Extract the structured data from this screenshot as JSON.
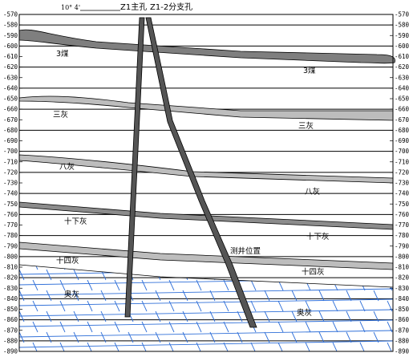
{
  "holes": {
    "main_label": "Z1主孔",
    "branch_label": "Z1-2分支孔",
    "angle_label": "10° 4'",
    "logging_label": "测井位置",
    "logging_color": "#e000d0"
  },
  "axis": {
    "min": -890,
    "max": -570,
    "step": 10,
    "ticks": [
      "-570",
      "-580",
      "-590",
      "-600",
      "-610",
      "-620",
      "-630",
      "-640",
      "-650",
      "-660",
      "-670",
      "-680",
      "-690",
      "-700",
      "-710",
      "-720",
      "-730",
      "-740",
      "-750",
      "-760",
      "-770",
      "-780",
      "-790",
      "-800",
      "-810",
      "-820",
      "-830",
      "-840",
      "-850",
      "-860",
      "-870",
      "-880",
      "-890"
    ]
  },
  "layers": [
    {
      "id": "coal3",
      "label_left": "3煤",
      "label_right": "3煤",
      "fill": "#7f7f7f"
    },
    {
      "id": "limestone3",
      "label_left": "三灰",
      "label_right": "三灰",
      "fill": "#bdbdbd"
    },
    {
      "id": "limestone8",
      "label_left": "八灰",
      "label_right": "八灰",
      "fill": "#bdbdbd"
    },
    {
      "id": "limestone10",
      "label_left": "十下灰",
      "label_right": "十下灰",
      "fill": "#8c8c8c"
    },
    {
      "id": "limestone14",
      "label_left": "十四灰",
      "label_right": "十四灰",
      "fill": "#bdbdbd"
    },
    {
      "id": "ordovician",
      "label_left": "奥灰",
      "label_right": "奥灰",
      "pattern_color": "#2f6fd8"
    }
  ],
  "colors": {
    "line": "#000000",
    "hole_fill": "#555555",
    "background": "#ffffff"
  }
}
